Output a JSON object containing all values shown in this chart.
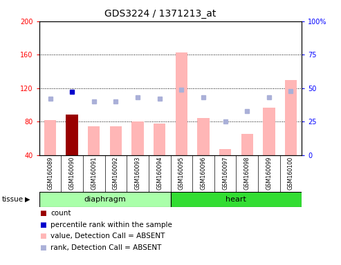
{
  "title": "GDS3224 / 1371213_at",
  "samples": [
    "GSM160089",
    "GSM160090",
    "GSM160091",
    "GSM160092",
    "GSM160093",
    "GSM160094",
    "GSM160095",
    "GSM160096",
    "GSM160097",
    "GSM160098",
    "GSM160099",
    "GSM160100"
  ],
  "values": [
    82,
    88,
    74,
    74,
    80,
    78,
    163,
    84,
    47,
    65,
    97,
    130
  ],
  "ranks_pct": [
    42,
    47,
    40,
    40,
    43,
    42,
    49,
    43,
    25,
    33,
    43,
    48
  ],
  "is_count": [
    false,
    true,
    false,
    false,
    false,
    false,
    false,
    false,
    false,
    false,
    false,
    false
  ],
  "tissue_groups": [
    {
      "label": "diaphragm",
      "start": 0,
      "end": 5,
      "color": "#aaffaa"
    },
    {
      "label": "heart",
      "start": 6,
      "end": 11,
      "color": "#33dd33"
    }
  ],
  "ylim_left": [
    40,
    200
  ],
  "ylim_right": [
    0,
    100
  ],
  "yticks_left": [
    40,
    80,
    120,
    160,
    200
  ],
  "yticks_right": [
    0,
    25,
    50,
    75,
    100
  ],
  "bar_color_absent": "#ffb6b6",
  "bar_color_count": "#990000",
  "dot_color_absent": "#aab0d8",
  "dot_color_rank_filled": "#0000cc",
  "background_color": "#ffffff",
  "plot_bg": "#ffffff",
  "title_fontsize": 10,
  "tick_fontsize": 7,
  "legend_fontsize": 7.5,
  "legend_items": [
    {
      "color": "#990000",
      "label": "count"
    },
    {
      "color": "#0000cc",
      "label": "percentile rank within the sample"
    },
    {
      "color": "#ffb6b6",
      "label": "value, Detection Call = ABSENT"
    },
    {
      "color": "#aab0d8",
      "label": "rank, Detection Call = ABSENT"
    }
  ]
}
